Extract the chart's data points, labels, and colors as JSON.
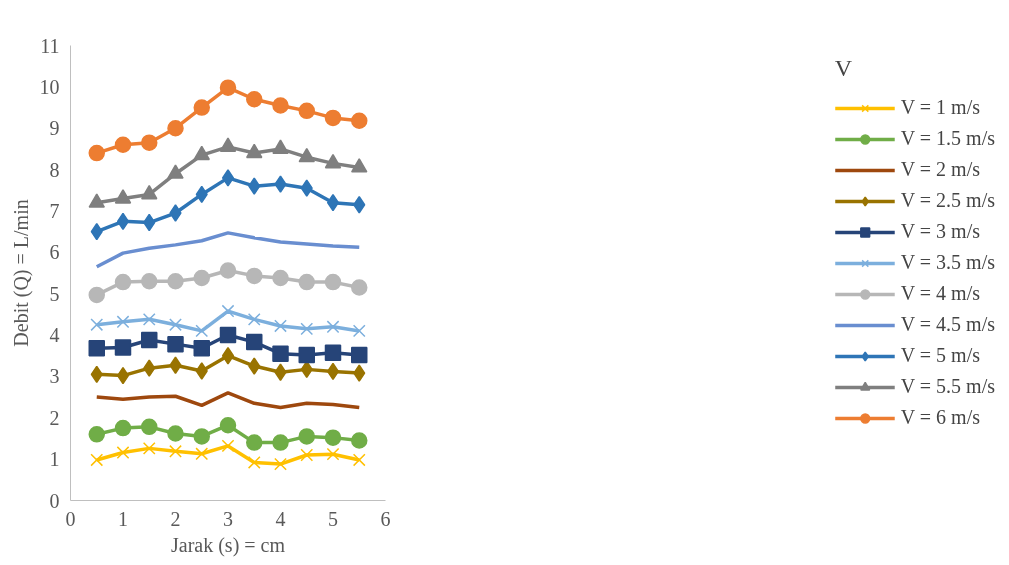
{
  "chart_data": {
    "type": "line",
    "xlabel": "Jarak (s) = cm",
    "ylabel": "Debit (Q) = L/min",
    "legend_title": "V",
    "legend": "right",
    "grid": false,
    "xlim": [
      0,
      6
    ],
    "xticks": [
      0,
      1,
      2,
      3,
      4,
      5,
      6
    ],
    "ylim": [
      0,
      11
    ],
    "yticks": [
      0,
      1,
      2,
      3,
      4,
      5,
      6,
      7,
      8,
      9,
      10,
      11
    ],
    "x": [
      0.5,
      1,
      1.5,
      2,
      2.5,
      3,
      3.5,
      4,
      4.5,
      5,
      5.5
    ],
    "series": [
      {
        "name": "V = 1 m/s",
        "color": "#ffc000",
        "marker": "cross",
        "values": [
          0.98,
          1.16,
          1.26,
          1.19,
          1.13,
          1.32,
          0.92,
          0.88,
          1.1,
          1.12,
          0.98
        ]
      },
      {
        "name": "V = 1.5 m/s",
        "color": "#70ad47",
        "marker": "circle",
        "values": [
          1.6,
          1.75,
          1.78,
          1.62,
          1.55,
          1.82,
          1.4,
          1.4,
          1.55,
          1.52,
          1.45
        ]
      },
      {
        "name": "V = 2 m/s",
        "color": "#9e480e",
        "marker": "none",
        "values": [
          2.5,
          2.45,
          2.5,
          2.52,
          2.3,
          2.6,
          2.35,
          2.25,
          2.35,
          2.32,
          2.25
        ]
      },
      {
        "name": "V = 2.5 m/s",
        "color": "#997300",
        "marker": "diamond",
        "values": [
          3.05,
          3.02,
          3.2,
          3.27,
          3.13,
          3.5,
          3.25,
          3.1,
          3.17,
          3.12,
          3.08
        ]
      },
      {
        "name": "V = 3 m/s",
        "color": "#264478",
        "marker": "square",
        "values": [
          3.68,
          3.7,
          3.88,
          3.78,
          3.68,
          4.0,
          3.83,
          3.55,
          3.52,
          3.57,
          3.52
        ]
      },
      {
        "name": "V = 3.5 m/s",
        "color": "#7cafdd",
        "marker": "cross",
        "values": [
          4.25,
          4.32,
          4.38,
          4.25,
          4.1,
          4.58,
          4.38,
          4.22,
          4.15,
          4.2,
          4.1
        ]
      },
      {
        "name": "V = 4 m/s",
        "color": "#b7b7b7",
        "marker": "circle",
        "values": [
          4.97,
          5.28,
          5.3,
          5.3,
          5.38,
          5.56,
          5.43,
          5.38,
          5.28,
          5.28,
          5.15
        ]
      },
      {
        "name": "V = 4.5 m/s",
        "color": "#698ed0",
        "marker": "none",
        "values": [
          5.65,
          5.98,
          6.1,
          6.18,
          6.28,
          6.47,
          6.35,
          6.25,
          6.2,
          6.15,
          6.12
        ]
      },
      {
        "name": "V = 5 m/s",
        "color": "#2e75b6",
        "marker": "diamond",
        "values": [
          6.5,
          6.75,
          6.72,
          6.95,
          7.4,
          7.8,
          7.6,
          7.65,
          7.55,
          7.2,
          7.15
        ]
      },
      {
        "name": "V = 5.5 m/s",
        "color": "#7f7f7f",
        "marker": "triangle",
        "values": [
          7.2,
          7.3,
          7.4,
          7.9,
          8.35,
          8.55,
          8.4,
          8.5,
          8.3,
          8.15,
          8.05
        ]
      },
      {
        "name": "V = 6 m/s",
        "color": "#ed7d31",
        "marker": "circle",
        "values": [
          8.4,
          8.6,
          8.65,
          9.0,
          9.5,
          9.98,
          9.7,
          9.55,
          9.42,
          9.25,
          9.18
        ]
      }
    ]
  }
}
